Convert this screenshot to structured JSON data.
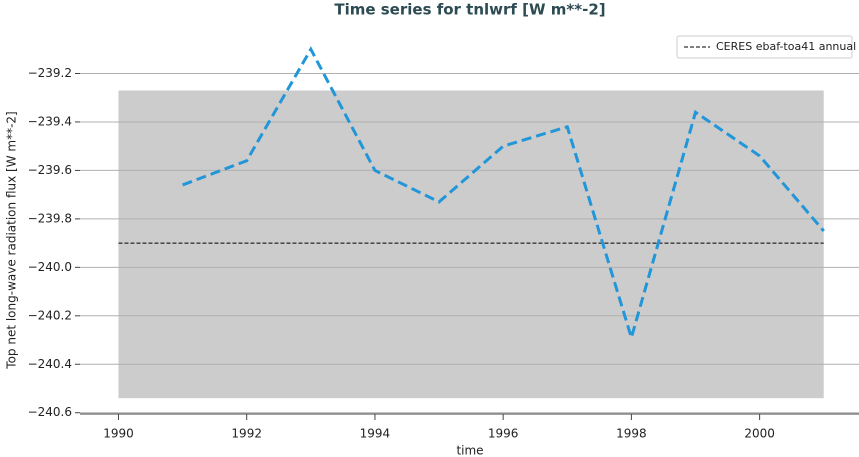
{
  "chart_data": {
    "type": "line",
    "title": "Time series for tnlwrf [W m**-2]",
    "x_label": "time",
    "y_label": "Top net long-wave radiation flux [W m**-2]",
    "x": [
      1991,
      1992,
      1993,
      1994,
      1995,
      1996,
      1997,
      1998,
      1999,
      2000,
      2001
    ],
    "series": [
      {
        "color": "#2196d9",
        "values": [
          -239.66,
          -239.56,
          -239.1,
          -239.6,
          -239.73,
          -239.5,
          -239.42,
          -240.29,
          -239.36,
          -239.54,
          -239.85
        ]
      }
    ],
    "reference": {
      "name": "CERES ebaf-toa41 annual",
      "value": -239.9,
      "color": "#000000"
    },
    "band": [
      -240.54,
      -239.27
    ],
    "band_x": [
      1990,
      2001
    ],
    "band_color": "#cccccc",
    "xlim": [
      1989.4,
      2001.55
    ],
    "ylim": [
      -240.63,
      -239.07
    ],
    "xticks": [
      1990,
      1992,
      1994,
      1996,
      1998,
      2000
    ],
    "yticks": [
      {
        "value": -239.2,
        "label": "−239.2"
      },
      {
        "value": -239.4,
        "label": "−239.4"
      },
      {
        "value": -239.6,
        "label": "−239.6"
      },
      {
        "value": -239.8,
        "label": "−239.8"
      },
      {
        "value": -240.0,
        "label": "−240.0"
      },
      {
        "value": -240.2,
        "label": "−240.2"
      },
      {
        "value": -240.4,
        "label": "−240.4"
      },
      {
        "value": -240.6,
        "label": "−240.6"
      }
    ],
    "grid": true,
    "legend": "upper right"
  }
}
